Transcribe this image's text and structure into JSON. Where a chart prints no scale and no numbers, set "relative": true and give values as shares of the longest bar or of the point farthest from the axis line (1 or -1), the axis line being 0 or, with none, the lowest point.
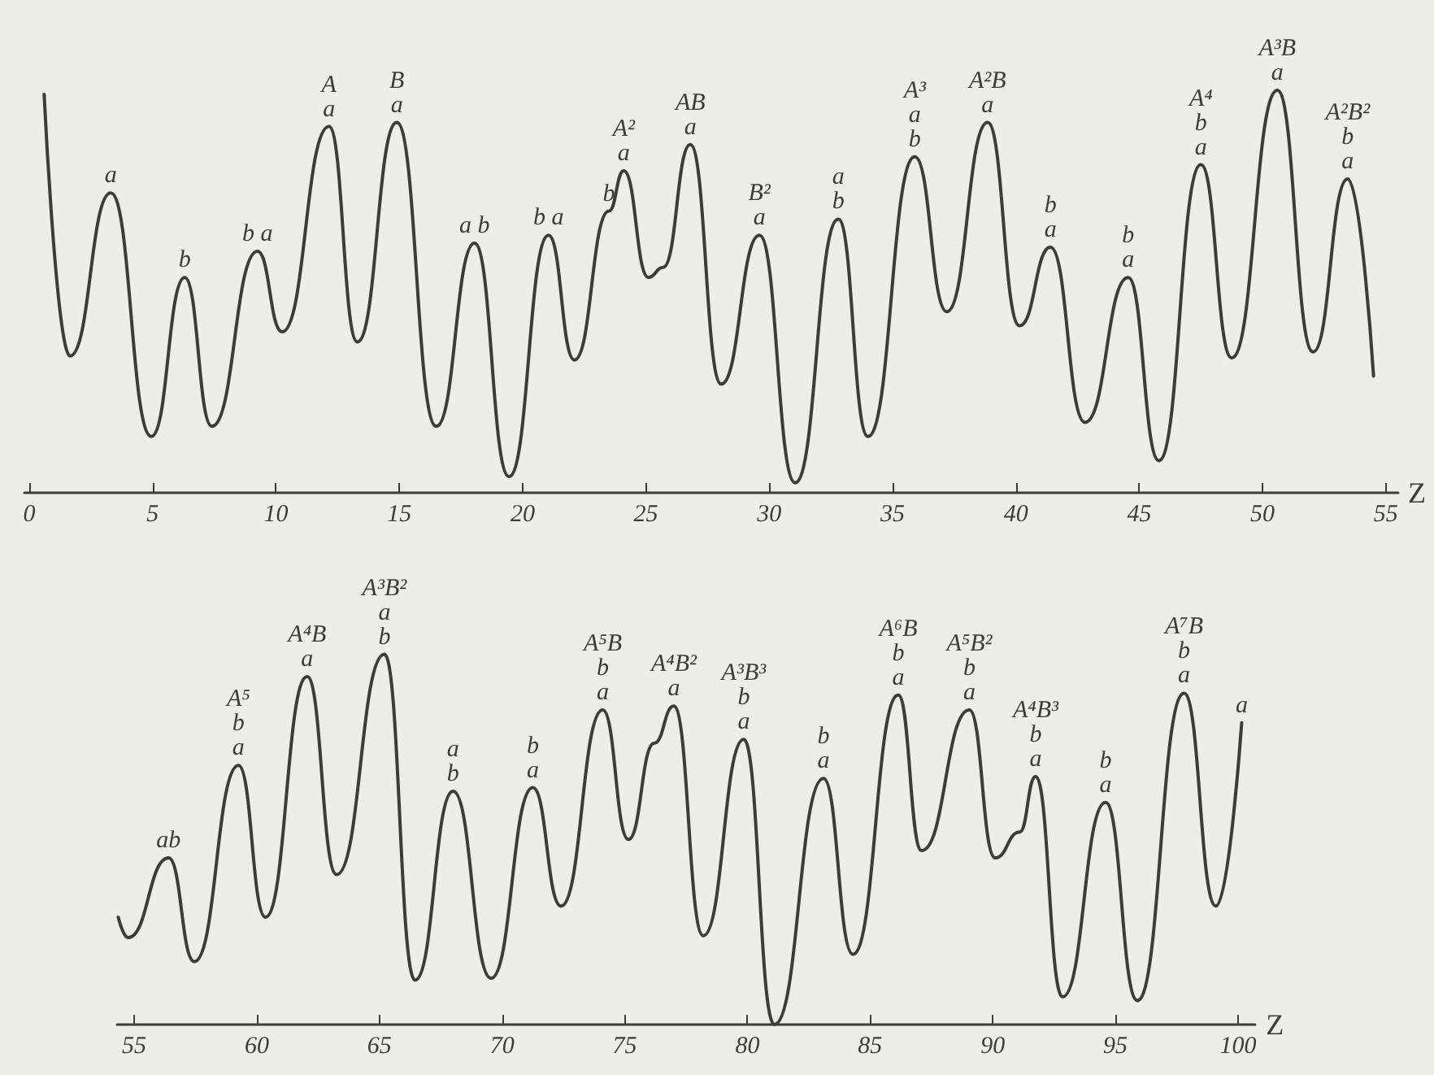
{
  "chart_data": [
    {
      "type": "line",
      "relative": true,
      "xlabel": "Z",
      "xlim": [
        -0.2,
        55.5
      ],
      "xticks": [
        0,
        5,
        10,
        15,
        20,
        25,
        30,
        35,
        40,
        45,
        50,
        55
      ],
      "marker": "none",
      "series": [
        {
          "color": "#3d3d35",
          "x": [
            0.6,
            1.65,
            3.3,
            4.95,
            6.3,
            7.4,
            9.25,
            10.25,
            12.15,
            13.3,
            14.9,
            16.5,
            18.05,
            19.45,
            21.05,
            22.1,
            23.5,
            24.1,
            25.1,
            25.7,
            26.8,
            28.05,
            29.6,
            31.05,
            32.8,
            34.0,
            35.9,
            37.2,
            38.85,
            40.15,
            41.4,
            42.8,
            44.55,
            45.8,
            47.5,
            48.75,
            50.6,
            52.05,
            53.45,
            54.5
          ],
          "values": [
            0.99,
            0.34,
            0.745,
            0.14,
            0.535,
            0.165,
            0.6,
            0.4,
            0.91,
            0.375,
            0.92,
            0.165,
            0.62,
            0.04,
            0.64,
            0.33,
            0.7,
            0.8,
            0.535,
            0.56,
            0.865,
            0.27,
            0.64,
            0.025,
            0.68,
            0.14,
            0.835,
            0.45,
            0.92,
            0.415,
            0.61,
            0.175,
            0.535,
            0.08,
            0.815,
            0.335,
            1.0,
            0.35,
            0.78,
            0.29
          ]
        }
      ],
      "annotations": [
        {
          "text": "a",
          "x": 3.3,
          "y": 0.745
        },
        {
          "text": "b",
          "x": 6.3,
          "y": 0.535
        },
        {
          "text": "b a",
          "x": 9.25,
          "y": 0.6
        },
        {
          "text": "A\na",
          "x": 12.15,
          "y": 0.91
        },
        {
          "text": "B\na",
          "x": 14.9,
          "y": 0.92
        },
        {
          "text": "a b",
          "x": 18.05,
          "y": 0.62
        },
        {
          "text": "b a",
          "x": 21.05,
          "y": 0.64
        },
        {
          "text": "b",
          "x": 23.5,
          "y": 0.7
        },
        {
          "text": "A²\na",
          "x": 24.1,
          "y": 0.8
        },
        {
          "text": "AB\na",
          "x": 26.8,
          "y": 0.865
        },
        {
          "text": "B²\na",
          "x": 29.6,
          "y": 0.64
        },
        {
          "text": "a\nb",
          "x": 32.8,
          "y": 0.68
        },
        {
          "text": "A³\na\nb",
          "x": 35.9,
          "y": 0.835
        },
        {
          "text": "A²B\na",
          "x": 38.85,
          "y": 0.92
        },
        {
          "text": "b\na",
          "x": 41.4,
          "y": 0.61
        },
        {
          "text": "b\na",
          "x": 44.55,
          "y": 0.535
        },
        {
          "text": "A⁴\nb\na",
          "x": 47.5,
          "y": 0.815
        },
        {
          "text": "A³B\na",
          "x": 50.6,
          "y": 1.0
        },
        {
          "text": "A²B²\nb\na",
          "x": 53.45,
          "y": 0.78
        }
      ]
    },
    {
      "type": "line",
      "relative": true,
      "xlabel": "Z",
      "xlim": [
        54.3,
        100.7
      ],
      "xticks": [
        55,
        60,
        65,
        70,
        75,
        80,
        85,
        90,
        95,
        100
      ],
      "marker": "none",
      "series": [
        {
          "color": "#3d3d35",
          "x": [
            54.35,
            54.75,
            56.4,
            57.45,
            59.25,
            60.35,
            62.05,
            63.25,
            65.2,
            66.45,
            68.0,
            69.55,
            71.25,
            72.4,
            74.1,
            75.15,
            76.2,
            77.0,
            78.2,
            79.85,
            81.1,
            83.1,
            84.3,
            86.15,
            87.1,
            89.05,
            90.1,
            91.1,
            91.75,
            92.85,
            94.6,
            95.9,
            97.8,
            99.1,
            100.15
          ],
          "values": [
            0.29,
            0.235,
            0.45,
            0.17,
            0.7,
            0.29,
            0.94,
            0.405,
            1.0,
            0.12,
            0.63,
            0.125,
            0.64,
            0.32,
            0.85,
            0.5,
            0.76,
            0.86,
            0.24,
            0.77,
            0.0,
            0.665,
            0.19,
            0.89,
            0.47,
            0.85,
            0.45,
            0.52,
            0.67,
            0.075,
            0.6,
            0.065,
            0.895,
            0.32,
            0.815
          ]
        }
      ],
      "annotations": [
        {
          "text": "ab",
          "x": 56.4,
          "y": 0.45
        },
        {
          "text": "A⁵\nb\na",
          "x": 59.25,
          "y": 0.7
        },
        {
          "text": "A⁴B\na",
          "x": 62.05,
          "y": 0.94
        },
        {
          "text": "A³B²\na\nb",
          "x": 65.2,
          "y": 1.0
        },
        {
          "text": "a\nb",
          "x": 68.0,
          "y": 0.63
        },
        {
          "text": "b\na",
          "x": 71.25,
          "y": 0.64
        },
        {
          "text": "A⁵B\nb\na",
          "x": 74.1,
          "y": 0.85
        },
        {
          "text": "A⁴B²\na",
          "x": 77.0,
          "y": 0.86
        },
        {
          "text": "A³B³\nb\na",
          "x": 79.85,
          "y": 0.77
        },
        {
          "text": "b\na",
          "x": 83.1,
          "y": 0.665
        },
        {
          "text": "A⁶B\nb\na",
          "x": 86.15,
          "y": 0.89
        },
        {
          "text": "A⁵B²\nb\na",
          "x": 89.05,
          "y": 0.85
        },
        {
          "text": "A⁴B³\nb\na",
          "x": 91.75,
          "y": 0.67
        },
        {
          "text": "b\na",
          "x": 94.6,
          "y": 0.6
        },
        {
          "text": "A⁷B\nb\na",
          "x": 97.8,
          "y": 0.895
        },
        {
          "text": "a",
          "x": 100.15,
          "y": 0.815
        }
      ]
    }
  ]
}
